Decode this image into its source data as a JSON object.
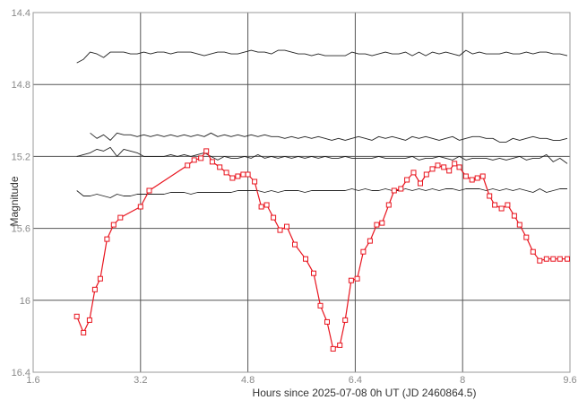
{
  "chart_data": {
    "type": "line",
    "title": "",
    "xlabel": "Hours since 2025-07-08 0h UT (JD 2460864.5)",
    "ylabel": "Magnitude",
    "xlim": [
      1.6,
      9.6
    ],
    "ylim": [
      14.4,
      16.4
    ],
    "y_inverted": true,
    "grid": true,
    "legend": "none",
    "xticks": [
      "1.6",
      "3.2",
      "4.8",
      "6.4",
      "8",
      "9.6"
    ],
    "yticks": [
      "14.4",
      "14.8",
      "15.2",
      "15.6",
      "16",
      "16.4"
    ],
    "colors": {
      "target": "#e8141e",
      "comparison": "#222222",
      "grid": "#555555",
      "frame": "#9a9a9a"
    },
    "series": [
      {
        "role": "target",
        "marker": "square",
        "x": [
          2.25,
          2.35,
          2.44,
          2.52,
          2.6,
          2.7,
          2.8,
          2.9,
          3.2,
          3.33,
          3.9,
          4.0,
          4.1,
          4.18,
          4.27,
          4.38,
          4.48,
          4.57,
          4.65,
          4.73,
          4.8,
          4.9,
          5.0,
          5.08,
          5.18,
          5.28,
          5.38,
          5.5,
          5.66,
          5.78,
          5.88,
          5.98,
          6.07,
          6.17,
          6.25,
          6.34,
          6.43,
          6.52,
          6.62,
          6.72,
          6.8,
          6.9,
          6.98,
          7.08,
          7.17,
          7.27,
          7.37,
          7.46,
          7.55,
          7.63,
          7.72,
          7.8,
          7.88,
          7.95,
          8.05,
          8.14,
          8.22,
          8.3,
          8.4,
          8.48,
          8.58,
          8.67,
          8.77,
          8.85,
          8.95,
          9.05,
          9.15,
          9.25,
          9.35,
          9.45,
          9.56
        ],
        "y": [
          16.09,
          16.18,
          16.11,
          15.94,
          15.88,
          15.66,
          15.58,
          15.54,
          15.48,
          15.39,
          15.25,
          15.22,
          15.21,
          15.17,
          15.23,
          15.26,
          15.29,
          15.32,
          15.31,
          15.3,
          15.3,
          15.34,
          15.48,
          15.47,
          15.54,
          15.61,
          15.59,
          15.69,
          15.77,
          15.85,
          16.03,
          16.12,
          16.27,
          16.25,
          16.11,
          15.89,
          15.88,
          15.73,
          15.67,
          15.58,
          15.57,
          15.47,
          15.39,
          15.38,
          15.33,
          15.29,
          15.35,
          15.3,
          15.27,
          15.25,
          15.26,
          15.28,
          15.24,
          15.26,
          15.31,
          15.33,
          15.32,
          15.31,
          15.42,
          15.47,
          15.49,
          15.47,
          15.53,
          15.58,
          15.65,
          15.73,
          15.78,
          15.77,
          15.77,
          15.77,
          15.77
        ]
      },
      {
        "role": "comparison",
        "x": [
          2.25,
          2.35,
          2.45,
          2.55,
          2.65,
          2.75,
          2.85,
          2.95,
          3.05,
          3.15,
          3.25,
          3.35,
          3.45,
          3.55,
          3.65,
          3.75,
          3.85,
          3.95,
          4.05,
          4.15,
          4.25,
          4.35,
          4.45,
          4.55,
          4.65,
          4.75,
          4.85,
          4.95,
          5.05,
          5.15,
          5.25,
          5.35,
          5.45,
          5.55,
          5.65,
          5.75,
          5.85,
          5.95,
          6.05,
          6.15,
          6.25,
          6.35,
          6.45,
          6.55,
          6.65,
          6.75,
          6.85,
          6.95,
          7.05,
          7.15,
          7.25,
          7.35,
          7.45,
          7.55,
          7.65,
          7.75,
          7.85,
          7.95,
          8.05,
          8.15,
          8.25,
          8.35,
          8.45,
          8.55,
          8.65,
          8.75,
          8.85,
          8.95,
          9.05,
          9.15,
          9.25,
          9.35,
          9.45,
          9.56
        ],
        "y": [
          14.68,
          14.66,
          14.62,
          14.63,
          14.65,
          14.62,
          14.62,
          14.62,
          14.63,
          14.63,
          14.62,
          14.63,
          14.62,
          14.62,
          14.63,
          14.62,
          14.62,
          14.62,
          14.63,
          14.64,
          14.63,
          14.62,
          14.62,
          14.63,
          14.63,
          14.62,
          14.61,
          14.62,
          14.62,
          14.63,
          14.61,
          14.61,
          14.62,
          14.63,
          14.63,
          14.64,
          14.63,
          14.64,
          14.64,
          14.64,
          14.64,
          14.62,
          14.63,
          14.63,
          14.64,
          14.63,
          14.62,
          14.63,
          14.63,
          14.62,
          14.64,
          14.62,
          14.64,
          14.62,
          14.63,
          14.62,
          14.63,
          14.64,
          14.61,
          14.63,
          14.62,
          14.63,
          14.63,
          14.63,
          14.62,
          14.63,
          14.63,
          14.62,
          14.63,
          14.62,
          14.62,
          14.63,
          14.63,
          14.64
        ]
      },
      {
        "role": "comparison",
        "x": [
          2.45,
          2.55,
          2.65,
          2.75,
          2.85,
          2.95,
          3.05,
          3.15,
          3.25,
          3.35,
          3.45,
          3.55,
          3.65,
          3.75,
          3.85,
          3.95,
          4.05,
          4.15,
          4.25,
          4.35,
          4.45,
          4.55,
          4.65,
          4.75,
          4.85,
          4.95,
          5.05,
          5.15,
          5.25,
          5.35,
          5.45,
          5.55,
          5.65,
          5.75,
          5.85,
          5.95,
          6.05,
          6.15,
          6.25,
          6.35,
          6.45,
          6.55,
          6.65,
          6.75,
          6.85,
          6.95,
          7.05,
          7.15,
          7.25,
          7.35,
          7.45,
          7.55,
          7.65,
          7.75,
          7.85,
          7.95,
          8.05,
          8.15,
          8.25,
          8.35,
          8.45,
          8.55,
          8.65,
          8.75,
          8.85,
          8.95,
          9.05,
          9.15,
          9.25,
          9.35,
          9.45,
          9.56
        ],
        "y": [
          15.07,
          15.1,
          15.08,
          15.11,
          15.07,
          15.08,
          15.08,
          15.09,
          15.08,
          15.09,
          15.08,
          15.09,
          15.08,
          15.09,
          15.08,
          15.09,
          15.08,
          15.09,
          15.07,
          15.09,
          15.08,
          15.09,
          15.08,
          15.09,
          15.08,
          15.09,
          15.08,
          15.09,
          15.09,
          15.1,
          15.09,
          15.1,
          15.09,
          15.1,
          15.09,
          15.1,
          15.11,
          15.1,
          15.11,
          15.1,
          15.09,
          15.1,
          15.11,
          15.09,
          15.1,
          15.09,
          15.1,
          15.11,
          15.09,
          15.1,
          15.09,
          15.1,
          15.11,
          15.1,
          15.09,
          15.11,
          15.1,
          15.09,
          15.09,
          15.1,
          15.1,
          15.12,
          15.12,
          15.1,
          15.11,
          15.1,
          15.09,
          15.1,
          15.1,
          15.11,
          15.11,
          15.1
        ]
      },
      {
        "role": "comparison",
        "x": [
          2.25,
          2.35,
          2.45,
          2.55,
          2.65,
          2.75,
          2.85,
          2.95,
          3.05,
          3.15,
          3.25,
          3.35,
          3.45,
          3.55,
          3.65,
          3.75,
          3.85,
          3.95,
          4.05,
          4.15,
          4.25,
          4.35,
          4.45,
          4.55,
          4.65,
          4.75,
          4.85,
          4.95,
          5.05,
          5.15,
          5.25,
          5.35,
          5.45,
          5.55,
          5.65,
          5.75,
          5.85,
          5.95,
          6.05,
          6.15,
          6.25,
          6.35,
          6.45,
          6.55,
          6.65,
          6.75,
          6.85,
          6.95,
          7.05,
          7.15,
          7.25,
          7.35,
          7.45,
          7.55,
          7.65,
          7.75,
          7.85,
          7.95,
          8.05,
          8.15,
          8.25,
          8.35,
          8.45,
          8.55,
          8.65,
          8.75,
          8.85,
          8.95,
          9.05,
          9.15,
          9.25,
          9.35,
          9.45,
          9.56
        ],
        "y": [
          15.2,
          15.19,
          15.18,
          15.16,
          15.17,
          15.15,
          15.2,
          15.16,
          15.17,
          15.18,
          15.2,
          15.2,
          15.2,
          15.2,
          15.19,
          15.2,
          15.19,
          15.2,
          15.19,
          15.18,
          15.2,
          15.22,
          15.2,
          15.21,
          15.21,
          15.2,
          15.21,
          15.19,
          15.21,
          15.2,
          15.21,
          15.2,
          15.21,
          15.2,
          15.21,
          15.2,
          15.21,
          15.2,
          15.21,
          15.21,
          15.2,
          15.21,
          15.21,
          15.21,
          15.21,
          15.2,
          15.21,
          15.21,
          15.21,
          15.21,
          15.2,
          15.22,
          15.21,
          15.21,
          15.2,
          15.21,
          15.22,
          15.2,
          15.22,
          15.21,
          15.21,
          15.21,
          15.22,
          15.21,
          15.22,
          15.21,
          15.2,
          15.22,
          15.21,
          15.21,
          15.19,
          15.23,
          15.21,
          15.24
        ]
      },
      {
        "role": "comparison",
        "x": [
          2.25,
          2.35,
          2.45,
          2.55,
          2.65,
          2.75,
          2.85,
          2.95,
          3.05,
          3.15,
          3.25,
          3.35,
          3.45,
          3.55,
          3.65,
          3.75,
          3.85,
          3.95,
          4.05,
          4.15,
          4.25,
          4.35,
          4.45,
          4.55,
          4.65,
          4.75,
          4.85,
          4.95,
          5.05,
          5.15,
          5.25,
          5.35,
          5.45,
          5.55,
          5.65,
          5.75,
          5.85,
          5.95,
          6.05,
          6.15,
          6.25,
          6.35,
          6.45,
          6.55,
          6.65,
          6.75,
          6.85,
          6.95,
          7.05,
          7.15,
          7.25,
          7.35,
          7.45,
          7.55,
          7.65,
          7.75,
          7.85,
          7.95,
          8.05,
          8.15,
          8.25,
          8.35,
          8.45,
          8.55,
          8.65,
          8.75,
          8.85,
          8.95,
          9.05,
          9.15,
          9.25,
          9.35,
          9.45,
          9.56
        ],
        "y": [
          15.39,
          15.42,
          15.42,
          15.41,
          15.42,
          15.43,
          15.41,
          15.42,
          15.42,
          15.41,
          15.41,
          15.41,
          15.41,
          15.41,
          15.4,
          15.4,
          15.4,
          15.41,
          15.4,
          15.4,
          15.4,
          15.4,
          15.4,
          15.4,
          15.39,
          15.39,
          15.39,
          15.39,
          15.4,
          15.39,
          15.4,
          15.39,
          15.39,
          15.39,
          15.4,
          15.39,
          15.39,
          15.39,
          15.39,
          15.39,
          15.39,
          15.38,
          15.39,
          15.38,
          15.39,
          15.39,
          15.38,
          15.39,
          15.39,
          15.38,
          15.39,
          15.38,
          15.39,
          15.38,
          15.39,
          15.38,
          15.38,
          15.39,
          15.38,
          15.38,
          15.38,
          15.39,
          15.38,
          15.39,
          15.38,
          15.39,
          15.38,
          15.39,
          15.4,
          15.38,
          15.4,
          15.39,
          15.38,
          15.38
        ]
      }
    ]
  }
}
